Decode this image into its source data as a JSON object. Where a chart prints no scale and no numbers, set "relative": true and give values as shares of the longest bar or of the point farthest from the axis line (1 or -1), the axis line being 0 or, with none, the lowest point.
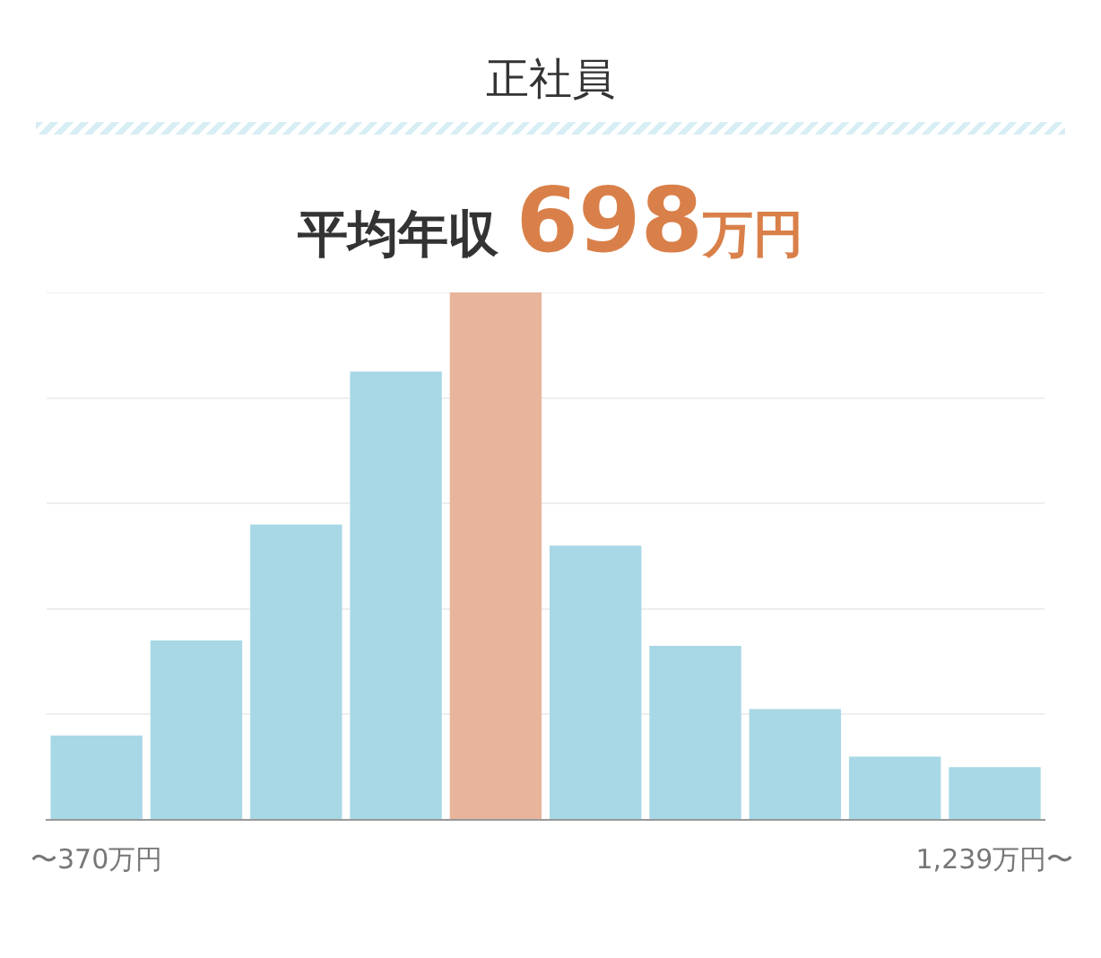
{
  "chart_data": {
    "type": "bar",
    "title": "正社員",
    "subtitle": "平均年収 698万円",
    "relative": true,
    "grid": "y",
    "categories": [
      "〜370万円",
      null,
      null,
      null,
      null,
      null,
      null,
      null,
      null,
      "1,239万円〜"
    ],
    "values": [
      0.16,
      0.34,
      0.56,
      0.85,
      1,
      0.52,
      0.33,
      0.21,
      0.12,
      0.1
    ],
    "colors": [
      "#a8d8e6",
      "#a8d8e6",
      "#a8d8e6",
      "#a8d8e6",
      "#e8b49c",
      "#a8d8e6",
      "#a8d8e6",
      "#a8d8e6",
      "#a8d8e6",
      "#a8d8e6"
    ]
  }
}
